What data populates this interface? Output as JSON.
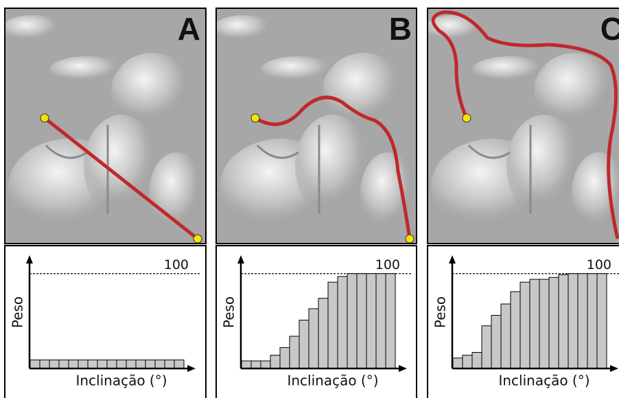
{
  "chart_data": [
    {
      "type": "bar",
      "title": "A",
      "x_label": "Inclinação (°)",
      "y_label": "Peso",
      "categories": [
        null,
        null,
        null,
        null,
        null,
        null,
        null,
        null,
        null,
        null,
        null,
        null,
        null,
        null,
        null,
        null
      ],
      "values": [
        9,
        9,
        9,
        9,
        9,
        9,
        9,
        9,
        9,
        9,
        9,
        9,
        9,
        9,
        9,
        9
      ],
      "color": "#c8c8c8",
      "ylim": [
        0,
        115
      ],
      "yticks": [
        100
      ]
    },
    {
      "type": "bar",
      "title": "B",
      "x_label": "Inclinação (°)",
      "y_label": "Peso",
      "categories": [
        null,
        null,
        null,
        null,
        null,
        null,
        null,
        null,
        null,
        null,
        null,
        null,
        null,
        null,
        null,
        null
      ],
      "values": [
        8,
        8,
        8,
        14,
        22,
        34,
        51,
        63,
        74,
        91,
        97,
        100,
        100,
        100,
        100,
        100
      ],
      "color": "#c8c8c8",
      "ylim": [
        0,
        115
      ],
      "yticks": [
        100
      ]
    },
    {
      "type": "bar",
      "title": "C",
      "x_label": "Inclinação (°)",
      "y_label": "Peso",
      "categories": [
        null,
        null,
        null,
        null,
        null,
        null,
        null,
        null,
        null,
        null,
        null,
        null,
        null,
        null,
        null,
        null
      ],
      "values": [
        11,
        14,
        17,
        45,
        56,
        68,
        81,
        91,
        94,
        94,
        96,
        99,
        100,
        100,
        100,
        100
      ],
      "color": "#c8c8c8",
      "ylim": [
        0,
        115
      ],
      "yticks": [
        100
      ]
    }
  ]
}
